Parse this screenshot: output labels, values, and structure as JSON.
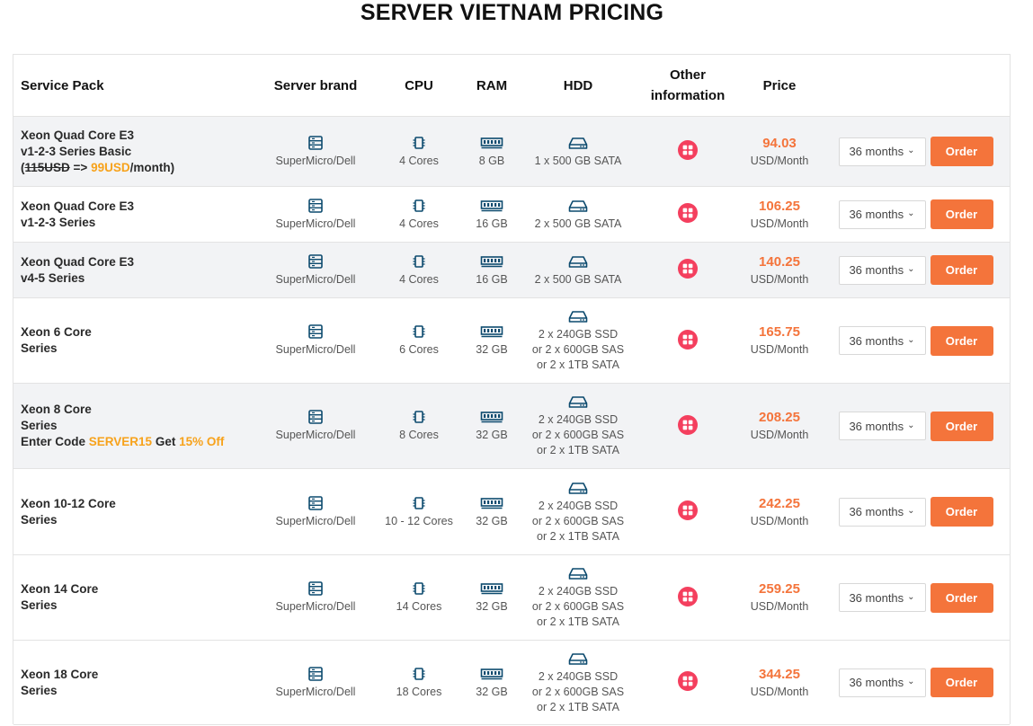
{
  "page": {
    "title": "SERVER VIETNAM PRICING"
  },
  "colors": {
    "accent": "#f4743b",
    "promo": "#f7a21b",
    "icon": "#0c4a6e",
    "info": "#f43f5e"
  },
  "headers": {
    "service_pack": "Service Pack",
    "brand": "Server brand",
    "cpu": "CPU",
    "ram": "RAM",
    "hdd": "HDD",
    "other_line1": "Other",
    "other_line2": "information",
    "price": "Price"
  },
  "rows": [
    {
      "name_l1": "Xeon Quad Core E3",
      "name_l2": "v1-2-3 Series Basic",
      "promo_open": "(",
      "promo_old": "115USD",
      "promo_arrow": " => ",
      "promo_new": "99USD",
      "promo_tail": "/month)",
      "brand": "SuperMicro/Dell",
      "cpu": "4 Cores",
      "ram": "8 GB",
      "hdd_l1": "1 x 500 GB SATA",
      "price": "94.03",
      "unit": "USD/Month",
      "term": "36 months",
      "order": "Order"
    },
    {
      "name_l1": "Xeon Quad Core E3",
      "name_l2": "v1-2-3 Series",
      "brand": "SuperMicro/Dell",
      "cpu": "4 Cores",
      "ram": "16 GB",
      "hdd_l1": "2 x 500 GB SATA",
      "price": "106.25",
      "unit": "USD/Month",
      "term": "36 months",
      "order": "Order"
    },
    {
      "name_l1": "Xeon Quad Core E3",
      "name_l2": "v4-5 Series",
      "brand": "SuperMicro/Dell",
      "cpu": "4 Cores",
      "ram": "16 GB",
      "hdd_l1": "2 x 500 GB SATA",
      "price": "140.25",
      "unit": "USD/Month",
      "term": "36 months",
      "order": "Order"
    },
    {
      "name_l1": "Xeon 6 Core",
      "name_l2": "Series",
      "brand": "SuperMicro/Dell",
      "cpu": "6 Cores",
      "ram": "32 GB",
      "hdd_l1": "2 x 240GB SSD",
      "hdd_l2": "or 2 x 600GB SAS",
      "hdd_l3": "or 2 x 1TB SATA",
      "price": "165.75",
      "unit": "USD/Month",
      "term": "36 months",
      "order": "Order"
    },
    {
      "name_l1": "Xeon 8 Core",
      "name_l2": "Series",
      "code_label": "Enter Code ",
      "code": "SERVER15",
      "code_mid": " Get ",
      "code_discount": "15% Off",
      "brand": "SuperMicro/Dell",
      "cpu": "8 Cores",
      "ram": "32 GB",
      "hdd_l1": "2 x 240GB SSD",
      "hdd_l2": "or 2 x 600GB SAS",
      "hdd_l3": "or 2 x 1TB SATA",
      "price": "208.25",
      "unit": "USD/Month",
      "term": "36 months",
      "order": "Order"
    },
    {
      "name_l1": "Xeon 10-12 Core",
      "name_l2": "Series",
      "brand": "SuperMicro/Dell",
      "cpu": "10 - 12 Cores",
      "ram": "32 GB",
      "hdd_l1": "2 x 240GB SSD",
      "hdd_l2": "or 2 x 600GB SAS",
      "hdd_l3": "or 2 x 1TB SATA",
      "price": "242.25",
      "unit": "USD/Month",
      "term": "36 months",
      "order": "Order"
    },
    {
      "name_l1": "Xeon 14 Core",
      "name_l2": "Series",
      "brand": "SuperMicro/Dell",
      "cpu": "14 Cores",
      "ram": "32 GB",
      "hdd_l1": "2 x 240GB SSD",
      "hdd_l2": "or 2 x 600GB SAS",
      "hdd_l3": "or 2 x 1TB SATA",
      "price": "259.25",
      "unit": "USD/Month",
      "term": "36 months",
      "order": "Order"
    },
    {
      "name_l1": "Xeon 18 Core",
      "name_l2": "Series",
      "brand": "SuperMicro/Dell",
      "cpu": "18 Cores",
      "ram": "32 GB",
      "hdd_l1": "2 x 240GB SSD",
      "hdd_l2": "or 2 x 600GB SAS",
      "hdd_l3": "or 2 x 1TB SATA",
      "price": "344.25",
      "unit": "USD/Month",
      "term": "36 months",
      "order": "Order"
    }
  ]
}
